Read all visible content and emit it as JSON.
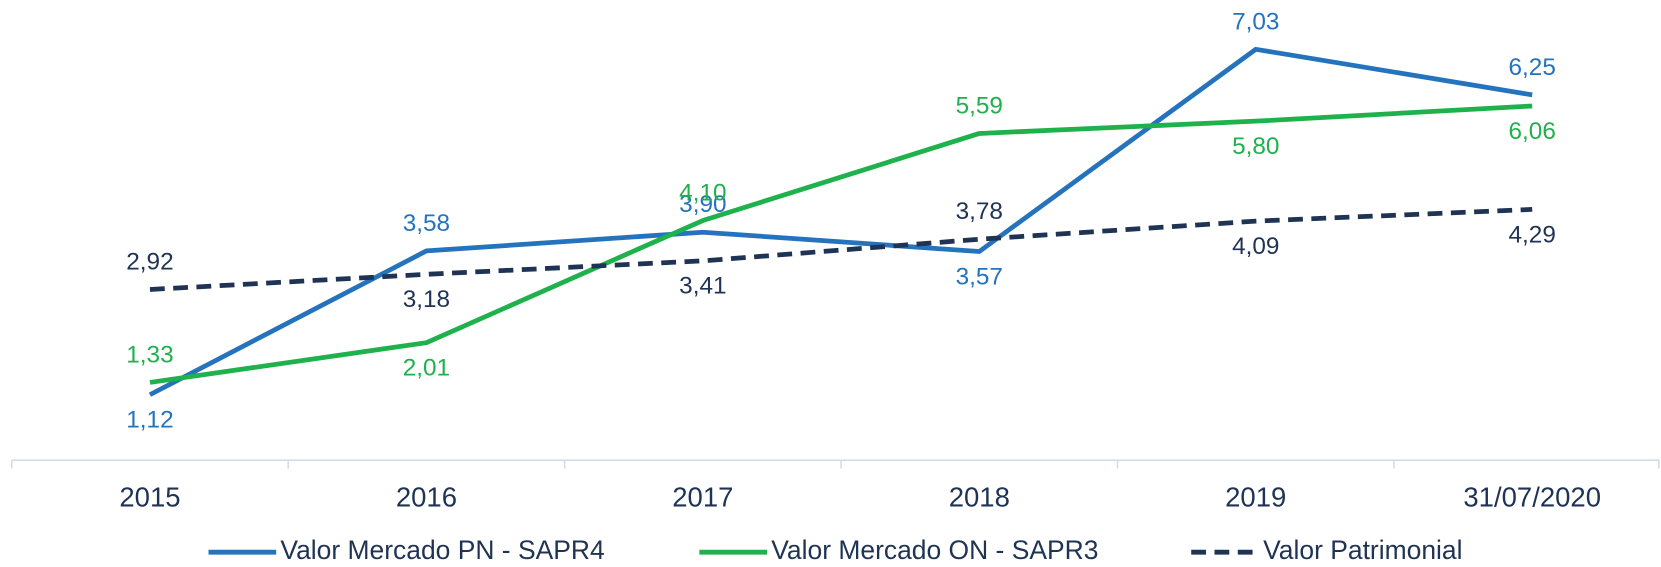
{
  "chart_data": {
    "type": "line",
    "categories": [
      "2015",
      "2016",
      "2017",
      "2018",
      "2019",
      "31/07/2020"
    ],
    "series": [
      {
        "name": "Valor Mercado PN - SAPR4",
        "color": "#2573bd",
        "dashed": false,
        "values": [
          1.12,
          3.58,
          3.9,
          3.57,
          7.03,
          6.25
        ],
        "value_labels": [
          "1,12",
          "3,58",
          "3,90",
          "3,57",
          "7,03",
          "6,25"
        ]
      },
      {
        "name": "Valor Mercado ON - SAPR3",
        "color": "#1fb14c",
        "dashed": false,
        "values": [
          1.33,
          2.01,
          4.1,
          5.59,
          5.8,
          6.06
        ],
        "value_labels": [
          "1,33",
          "2,01",
          "4,10",
          "5,59",
          "5,80",
          "6,06"
        ]
      },
      {
        "name": "Valor Patrimonial",
        "color": "#1f3354",
        "dashed": true,
        "values": [
          2.92,
          3.18,
          3.41,
          3.78,
          4.09,
          4.29
        ],
        "value_labels": [
          "2,92",
          "3,18",
          "3,41",
          "3,78",
          "4,09",
          "4,29"
        ]
      }
    ],
    "ylim": [
      0,
      8
    ],
    "legend": "bottom"
  }
}
